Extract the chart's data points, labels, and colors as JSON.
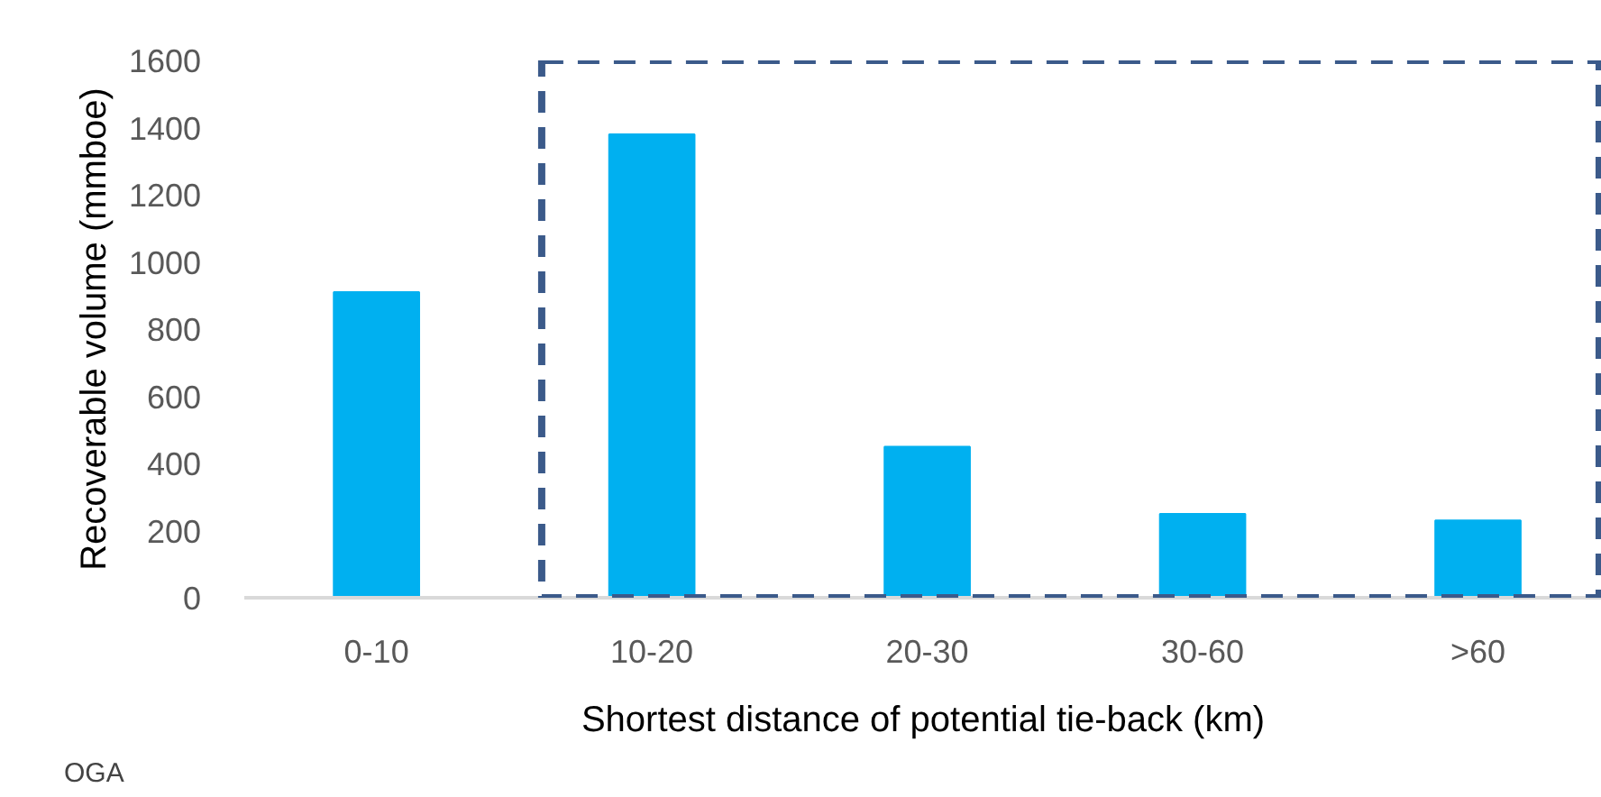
{
  "chart_data": {
    "type": "bar",
    "xlabel": "Shortest distance of potential tie-back (km)",
    "ylabel": "Recoverable volume (mmboe)",
    "categories": [
      "0-10",
      "10-20",
      "20-30",
      "30-60",
      ">60"
    ],
    "values": [
      910,
      1380,
      450,
      250,
      230
    ],
    "color": "#00b0f0",
    "ylim": [
      0,
      1600
    ],
    "yticks": [
      0,
      200,
      400,
      600,
      800,
      1000,
      1200,
      1400,
      1600
    ],
    "grid": false,
    "annotations": [
      "OGA"
    ]
  }
}
